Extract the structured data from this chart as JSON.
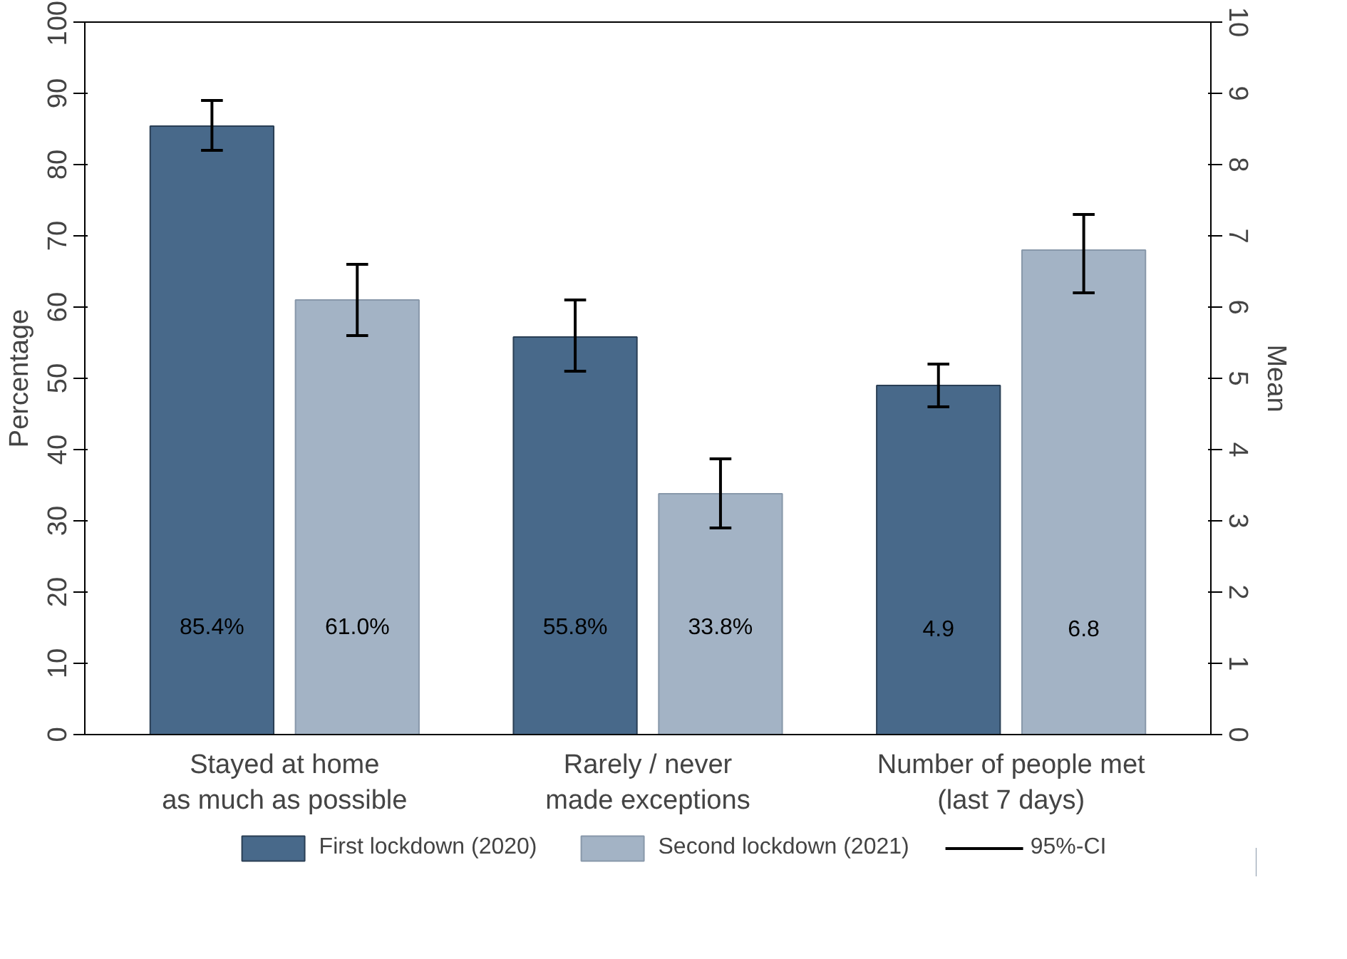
{
  "chart_data": {
    "type": "bar",
    "categories": [
      "Stayed at home\nas much as possible",
      "Rarely / never\nmade exceptions",
      "Number of people met\n(last 7 days)"
    ],
    "ylabel": "Percentage",
    "y2label": "Mean",
    "ylim": [
      0,
      100
    ],
    "yticks": [
      0,
      10,
      20,
      30,
      40,
      50,
      60,
      70,
      80,
      90,
      100
    ],
    "y2lim": [
      0,
      10
    ],
    "y2ticks": [
      0,
      1,
      2,
      3,
      4,
      5,
      6,
      7,
      8,
      9,
      10
    ],
    "grid": false,
    "legend": "bottom",
    "annotations": [
      "95%-CI"
    ],
    "series": [
      {
        "name": "First lockdown (2020)",
        "color": "#48698a",
        "values": [
          85.4,
          55.8,
          null
        ],
        "errors": [
          [
            82,
            89
          ],
          [
            51,
            61
          ],
          null
        ],
        "value_labels": [
          "85.4%",
          "55.8%",
          null
        ]
      },
      {
        "name": "Second lockdown (2021)",
        "color": "#a3b3c5",
        "values": [
          61.0,
          33.8,
          null
        ],
        "errors": [
          [
            56,
            66
          ],
          [
            29,
            38.7
          ],
          null
        ],
        "value_labels": [
          "61.0%",
          "33.8%",
          null
        ]
      },
      {
        "color": "#48698a",
        "axis": "y2",
        "values": [
          null,
          null,
          4.9
        ],
        "errors": [
          null,
          null,
          [
            4.6,
            5.2
          ]
        ],
        "value_labels": [
          null,
          null,
          "4.9"
        ]
      },
      {
        "color": "#a3b3c5",
        "axis": "y2",
        "values": [
          null,
          null,
          6.8
        ],
        "errors": [
          null,
          null,
          [
            6.2,
            7.3
          ]
        ],
        "value_labels": [
          null,
          null,
          "6.8"
        ]
      }
    ]
  }
}
